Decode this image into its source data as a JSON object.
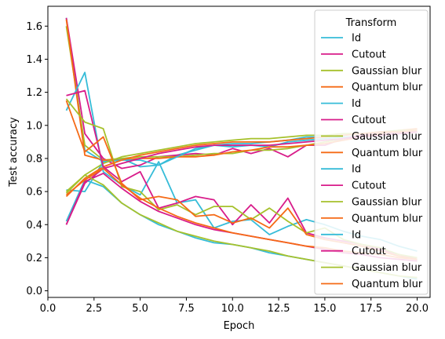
{
  "chart_data": {
    "type": "line",
    "xlabel": "Epoch",
    "ylabel": "Test accuracy",
    "xlim": [
      0,
      20.7
    ],
    "ylim": [
      -0.04,
      1.72
    ],
    "xticks": [
      0.0,
      2.5,
      5.0,
      7.5,
      10.0,
      12.5,
      15.0,
      17.5,
      20.0
    ],
    "xtick_labels": [
      "0.0",
      "2.5",
      "5.0",
      "7.5",
      "10.0",
      "12.5",
      "15.0",
      "17.5",
      "20.0"
    ],
    "yticks": [
      0.0,
      0.2,
      0.4,
      0.6,
      0.8,
      1.0,
      1.2,
      1.4,
      1.6
    ],
    "ytick_labels": [
      "0.0",
      "0.2",
      "0.4",
      "0.6",
      "0.8",
      "1.0",
      "1.2",
      "1.4",
      "1.6"
    ],
    "grid": false,
    "legend": {
      "title": "Transform",
      "placement": "top-right"
    },
    "x": [
      1,
      2,
      3,
      4,
      5,
      6,
      7,
      8,
      9,
      10,
      11,
      12,
      13,
      14,
      15,
      16,
      17,
      18,
      19,
      20
    ],
    "series": [
      {
        "name": "Id",
        "color": "#36bcd8",
        "values": [
          1.65,
          0.85,
          0.78,
          0.8,
          0.75,
          0.76,
          0.82,
          0.85,
          0.88,
          0.87,
          0.88,
          0.87,
          0.9,
          0.91,
          0.92,
          0.93,
          0.93,
          0.94,
          0.95,
          0.96
        ]
      },
      {
        "name": "Cutout",
        "color": "#d81c8a",
        "values": [
          1.65,
          0.95,
          0.8,
          0.74,
          0.76,
          0.81,
          0.82,
          0.83,
          0.82,
          0.86,
          0.83,
          0.86,
          0.81,
          0.88,
          0.88,
          0.92,
          0.94,
          0.95,
          0.96,
          0.96
        ]
      },
      {
        "name": "Gaussian blur",
        "color": "#a6c12c",
        "values": [
          1.6,
          0.88,
          0.79,
          0.8,
          0.81,
          0.81,
          0.81,
          0.82,
          0.83,
          0.83,
          0.85,
          0.85,
          0.86,
          0.88,
          0.9,
          0.92,
          0.93,
          0.94,
          0.95,
          0.96
        ]
      },
      {
        "name": "Quantum blur",
        "color": "#f56a16",
        "values": [
          1.64,
          0.82,
          0.79,
          0.79,
          0.8,
          0.8,
          0.81,
          0.81,
          0.82,
          0.84,
          0.85,
          0.87,
          0.87,
          0.88,
          0.89,
          0.91,
          0.93,
          0.95,
          0.97,
          0.98
        ]
      },
      {
        "name": "Id",
        "color": "#36bcd8",
        "values": [
          0.61,
          0.6,
          0.78,
          0.79,
          0.79,
          0.76,
          0.81,
          0.86,
          0.88,
          0.89,
          0.89,
          0.9,
          0.91,
          0.93,
          0.93,
          0.94,
          0.95,
          0.96,
          0.96,
          0.97
        ]
      },
      {
        "name": "Cutout",
        "color": "#d81c8a",
        "values": [
          0.4,
          0.65,
          0.74,
          0.77,
          0.8,
          0.83,
          0.85,
          0.87,
          0.88,
          0.88,
          0.88,
          0.88,
          0.89,
          0.9,
          0.91,
          0.92,
          0.93,
          0.94,
          0.95,
          0.96
        ]
      },
      {
        "name": "Gaussian blur",
        "color": "#a6c12c",
        "values": [
          0.6,
          0.7,
          0.77,
          0.81,
          0.83,
          0.85,
          0.87,
          0.89,
          0.9,
          0.91,
          0.92,
          0.92,
          0.93,
          0.94,
          0.94,
          0.95,
          0.95,
          0.96,
          0.97,
          0.97
        ]
      },
      {
        "name": "Quantum blur",
        "color": "#f56a16",
        "values": [
          0.57,
          0.68,
          0.75,
          0.79,
          0.82,
          0.84,
          0.86,
          0.88,
          0.89,
          0.9,
          0.9,
          0.9,
          0.91,
          0.92,
          0.93,
          0.94,
          0.95,
          0.96,
          0.96,
          0.97
        ]
      },
      {
        "name": "Id",
        "color": "#36bcd8",
        "values": [
          1.09,
          1.32,
          0.72,
          0.64,
          0.58,
          0.78,
          0.53,
          0.55,
          0.38,
          0.42,
          0.43,
          0.34,
          0.39,
          0.43,
          0.4,
          0.36,
          0.33,
          0.31,
          0.27,
          0.24
        ]
      },
      {
        "name": "Cutout",
        "color": "#d81c8a",
        "values": [
          1.18,
          1.21,
          0.75,
          0.66,
          0.72,
          0.5,
          0.53,
          0.57,
          0.55,
          0.4,
          0.52,
          0.41,
          0.56,
          0.35,
          0.32,
          0.3,
          0.28,
          0.25,
          0.22,
          0.19
        ]
      },
      {
        "name": "Gaussian blur",
        "color": "#a6c12c",
        "values": [
          1.16,
          1.02,
          0.98,
          0.63,
          0.6,
          0.49,
          0.52,
          0.46,
          0.51,
          0.51,
          0.43,
          0.5,
          0.42,
          0.35,
          0.38,
          0.31,
          0.28,
          0.26,
          0.22,
          0.2
        ]
      },
      {
        "name": "Quantum blur",
        "color": "#f56a16",
        "values": [
          1.15,
          0.84,
          0.93,
          0.65,
          0.55,
          0.57,
          0.55,
          0.45,
          0.46,
          0.41,
          0.44,
          0.38,
          0.5,
          0.34,
          0.31,
          0.29,
          0.27,
          0.24,
          0.21,
          0.19
        ]
      },
      {
        "name": "Id",
        "color": "#36bcd8",
        "values": [
          0.42,
          0.67,
          0.63,
          0.53,
          0.46,
          0.4,
          0.36,
          0.32,
          0.29,
          0.28,
          0.26,
          0.23,
          0.21,
          0.19,
          0.17,
          0.15,
          0.13,
          0.11,
          0.09,
          0.07
        ]
      },
      {
        "name": "Cutout",
        "color": "#d81c8a",
        "values": [
          0.4,
          0.66,
          0.71,
          0.62,
          0.54,
          0.48,
          0.44,
          0.4,
          0.37,
          0.35,
          0.33,
          0.31,
          0.29,
          0.27,
          0.25,
          0.23,
          0.22,
          0.2,
          0.19,
          0.18
        ]
      },
      {
        "name": "Gaussian blur",
        "color": "#a6c12c",
        "values": [
          0.59,
          0.7,
          0.64,
          0.53,
          0.46,
          0.41,
          0.36,
          0.33,
          0.3,
          0.28,
          0.26,
          0.24,
          0.21,
          0.19,
          0.17,
          0.15,
          0.13,
          0.11,
          0.09,
          0.08
        ]
      },
      {
        "name": "Quantum blur",
        "color": "#f56a16",
        "values": [
          0.58,
          0.67,
          0.74,
          0.64,
          0.56,
          0.5,
          0.45,
          0.41,
          0.38,
          0.35,
          0.33,
          0.31,
          0.29,
          0.27,
          0.26,
          0.24,
          0.23,
          0.22,
          0.2,
          0.19
        ]
      }
    ]
  }
}
